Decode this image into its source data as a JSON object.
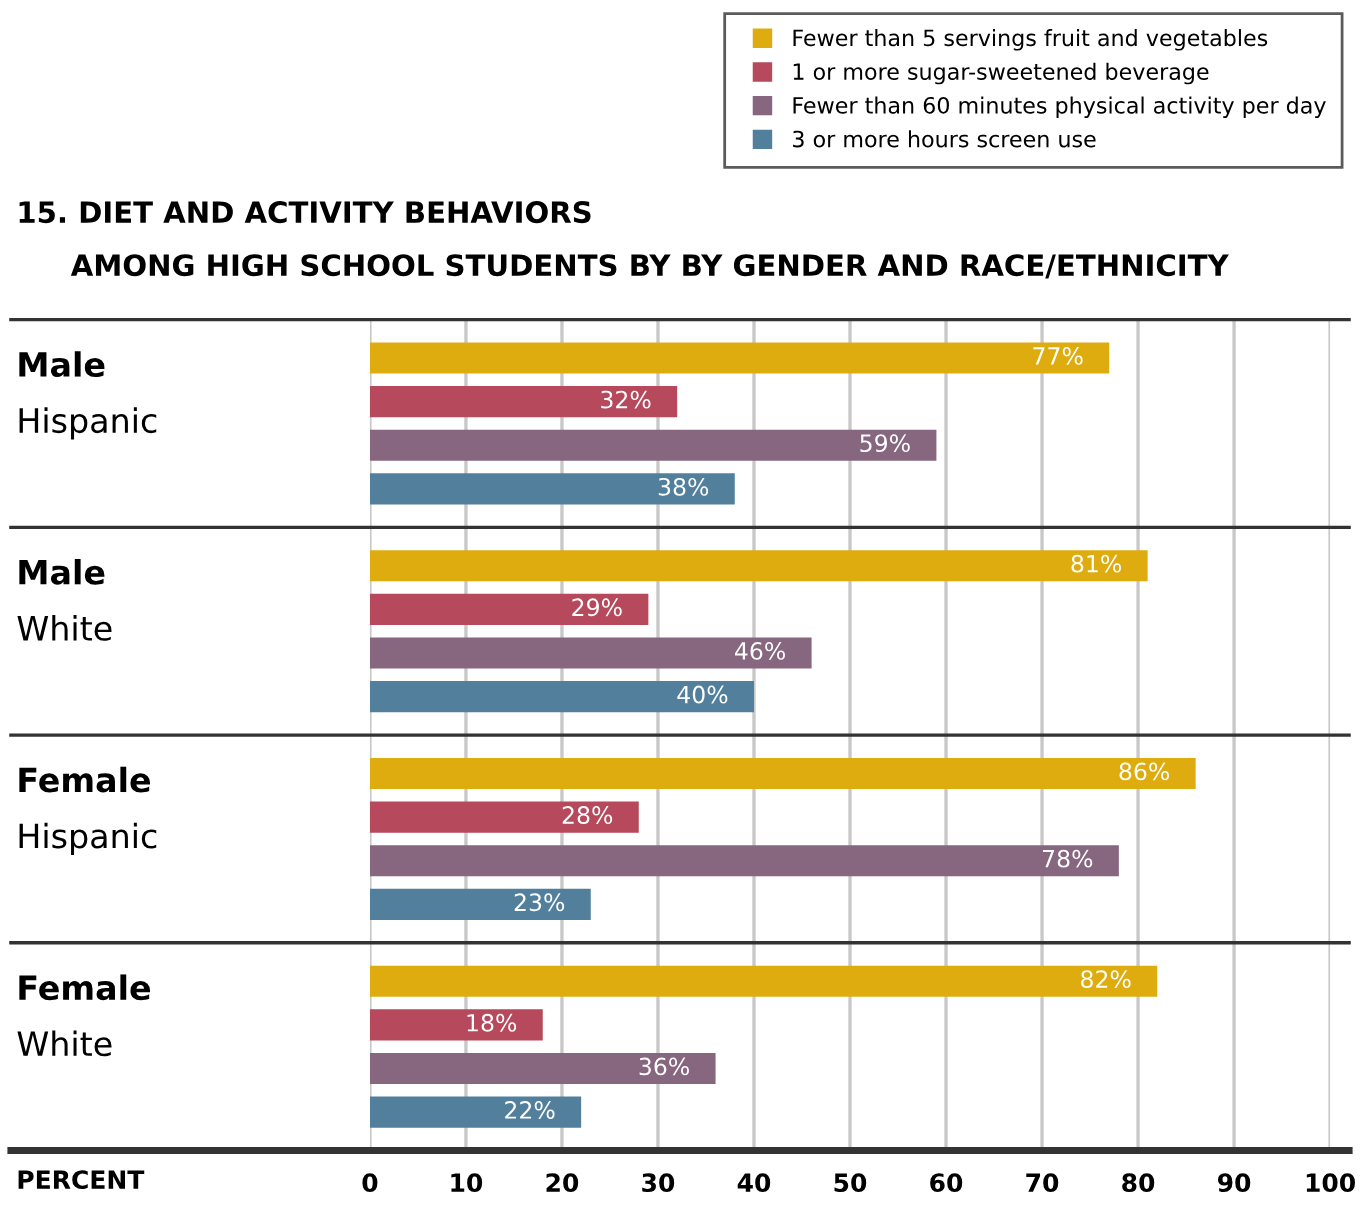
{
  "chart_data": {
    "type": "bar",
    "orientation": "horizontal",
    "title": "15. DIET AND ACTIVITY BEHAVIORS",
    "subtitle": "AMONG HIGH SCHOOL STUDENTS BY BY GENDER AND RACE/ETHNICITY",
    "xlabel": "PERCENT",
    "categories": [
      "Male\nHispanic",
      "Male\nWhite",
      "Female\nHispanic",
      "Female\nWhite"
    ],
    "series": [
      {
        "name": "Fewer than 5 servings fruit and vegetables",
        "color": "#dfac0f",
        "values": [
          77,
          81,
          86,
          82
        ],
        "value_labels": [
          "77%",
          "81%",
          "86%",
          "82%"
        ]
      },
      {
        "name": "1 or more sugar-sweetened beverage",
        "color": "#b6495c",
        "values": [
          32,
          29,
          28,
          18
        ],
        "value_labels": [
          "32%",
          "29%",
          "28%",
          "18%"
        ]
      },
      {
        "name": "Fewer than 60 minutes physical activity per day",
        "color": "#87667f",
        "values": [
          59,
          46,
          78,
          36
        ],
        "value_labels": [
          "59%",
          "46%",
          "78%",
          "36%"
        ]
      },
      {
        "name": "3 or more hours screen use",
        "color": "#52809c",
        "values": [
          38,
          40,
          23,
          22
        ],
        "value_labels": [
          "38%",
          "40%",
          "23%",
          "22%"
        ]
      }
    ],
    "xlim": [
      0,
      100
    ],
    "xticks": [
      0,
      10,
      20,
      30,
      40,
      50,
      60,
      70,
      80,
      90,
      100
    ],
    "grid": "x",
    "legend": "top right"
  }
}
